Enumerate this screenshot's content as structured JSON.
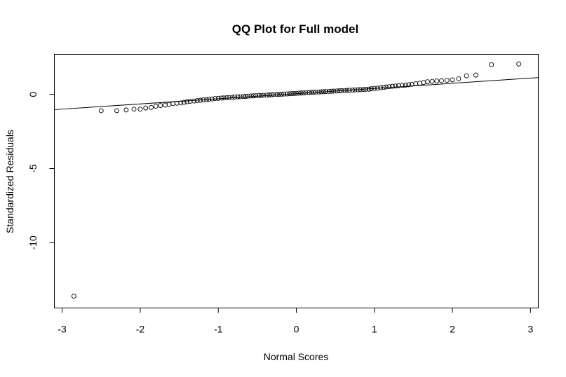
{
  "chart_data": {
    "type": "scatter",
    "title": "QQ Plot for Full model",
    "xlabel": "Normal Scores",
    "ylabel": "Standardized Residuals",
    "xlim": [
      -3.1,
      3.1
    ],
    "ylim": [
      -14.4,
      2.7
    ],
    "x_ticks": [
      -3,
      -2,
      -1,
      0,
      1,
      2,
      3
    ],
    "x_tick_labels": [
      "-3",
      "-2",
      "-1",
      "0",
      "1",
      "2",
      "3"
    ],
    "y_ticks": [
      0,
      -5,
      -10
    ],
    "y_tick_labels": [
      "0",
      "-5",
      "-10"
    ],
    "grid": false,
    "legend": "none",
    "point_color": "#000000",
    "line_color": "#000000",
    "reference_line": {
      "slope": 0.348,
      "intercept": 0.05
    },
    "series": [
      {
        "x": [
          -2.85,
          -2.5,
          -2.3,
          -2.18,
          -2.08,
          -2.0,
          -1.93,
          -1.86,
          -1.8,
          -1.74,
          -1.68,
          -1.63,
          -1.58,
          -1.53,
          -1.48,
          -1.44,
          -1.4,
          -1.36,
          -1.31,
          -1.27,
          -1.23,
          -1.19,
          -1.15,
          -1.12,
          -1.08,
          -1.04,
          -1.0,
          -0.96,
          -0.93,
          -0.89,
          -0.86,
          -0.82,
          -0.79,
          -0.75,
          -0.72,
          -0.68,
          -0.65,
          -0.62,
          -0.58,
          -0.55,
          -0.52,
          -0.48,
          -0.45,
          -0.42,
          -0.38,
          -0.35,
          -0.32,
          -0.29,
          -0.25,
          -0.22,
          -0.19,
          -0.16,
          -0.12,
          -0.09,
          -0.06,
          -0.03,
          0.0,
          0.03,
          0.06,
          0.09,
          0.12,
          0.16,
          0.19,
          0.22,
          0.25,
          0.29,
          0.32,
          0.35,
          0.38,
          0.42,
          0.45,
          0.48,
          0.52,
          0.55,
          0.58,
          0.62,
          0.65,
          0.68,
          0.72,
          0.75,
          0.79,
          0.82,
          0.86,
          0.89,
          0.93,
          0.96,
          1.0,
          1.04,
          1.08,
          1.12,
          1.15,
          1.19,
          1.23,
          1.27,
          1.31,
          1.36,
          1.4,
          1.44,
          1.48,
          1.53,
          1.58,
          1.63,
          1.68,
          1.74,
          1.8,
          1.86,
          1.93,
          2.0,
          2.08,
          2.18,
          2.3,
          2.5,
          2.85
        ],
        "y": [
          -13.6,
          -1.1,
          -1.1,
          -1.05,
          -1.0,
          -1.0,
          -0.92,
          -0.88,
          -0.8,
          -0.75,
          -0.72,
          -0.68,
          -0.62,
          -0.6,
          -0.58,
          -0.54,
          -0.5,
          -0.47,
          -0.45,
          -0.42,
          -0.4,
          -0.37,
          -0.35,
          -0.33,
          -0.31,
          -0.28,
          -0.27,
          -0.25,
          -0.24,
          -0.22,
          -0.21,
          -0.2,
          -0.18,
          -0.17,
          -0.16,
          -0.15,
          -0.14,
          -0.12,
          -0.11,
          -0.1,
          -0.09,
          -0.08,
          -0.07,
          -0.06,
          -0.05,
          -0.04,
          -0.03,
          -0.02,
          -0.01,
          0.0,
          0.01,
          0.02,
          0.03,
          0.04,
          0.05,
          0.06,
          0.07,
          0.08,
          0.09,
          0.1,
          0.11,
          0.12,
          0.13,
          0.14,
          0.15,
          0.16,
          0.17,
          0.18,
          0.19,
          0.2,
          0.21,
          0.22,
          0.23,
          0.24,
          0.25,
          0.26,
          0.27,
          0.28,
          0.29,
          0.3,
          0.31,
          0.32,
          0.33,
          0.34,
          0.35,
          0.38,
          0.4,
          0.42,
          0.45,
          0.47,
          0.5,
          0.52,
          0.54,
          0.56,
          0.58,
          0.6,
          0.62,
          0.65,
          0.68,
          0.72,
          0.75,
          0.8,
          0.85,
          0.88,
          0.9,
          0.92,
          0.95,
          0.98,
          1.05,
          1.25,
          1.3,
          2.0,
          2.05
        ]
      }
    ]
  }
}
